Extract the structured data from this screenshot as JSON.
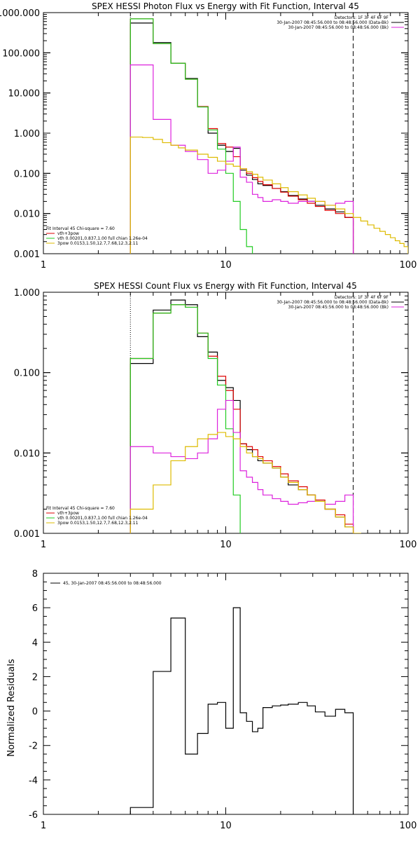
{
  "colors": {
    "black": "#000000",
    "red": "#dd0000",
    "green": "#22cc22",
    "magenta": "#dd22dd",
    "yellow": "#ddbb00"
  },
  "chart_data": [
    {
      "type": "line",
      "title": "SPEX HESSI Photon Flux vs Energy with Fit Function, Interval 45",
      "xlabel": "",
      "ylabel": "",
      "x_scale": "log",
      "y_scale": "log",
      "xlim": [
        1,
        100
      ],
      "ylim": [
        0.001,
        1000
      ],
      "xticks": [
        "1",
        "10",
        "100"
      ],
      "yticks": [
        "1000.000",
        "100.000",
        "10.000",
        "1.000",
        "0.100",
        "0.010",
        "0.001"
      ],
      "vlines": [
        3.0,
        50.0
      ],
      "legend_top": [
        "Detectors: 1F 3F 4F 6F 9F",
        "30-Jan-2007 08:45:56.000 to 08:48:56.000 (Data-Bk)",
        "30-Jan-2007 08:45:56.000 to 08:48:56.000 (Bk)"
      ],
      "legend_bottom": [
        "Fit Interval 45   Chi-square = 7.60",
        "vth+3pow",
        "vth 0.00201,0.837,1.00  full chian 1.26e-04",
        "3pow 0.0153,1.50,12.7,7.68,12.3,2.11"
      ],
      "series": [
        {
          "color": "black",
          "edges": [
            3,
            4,
            5,
            6,
            7,
            8,
            9,
            10,
            11,
            12,
            13,
            14,
            15,
            16,
            18,
            20,
            22,
            25,
            28,
            31,
            35,
            40,
            45,
            50
          ],
          "values": [
            550,
            180,
            55,
            23,
            4.5,
            1.0,
            0.5,
            0.35,
            0.42,
            0.12,
            0.09,
            0.07,
            0.055,
            0.05,
            0.042,
            0.035,
            0.028,
            0.023,
            0.02,
            0.016,
            0.013,
            0.011,
            0.008
          ]
        },
        {
          "color": "red",
          "edges": [
            3,
            4,
            5,
            6,
            7,
            8,
            9,
            10,
            11,
            12,
            13,
            14,
            15,
            16,
            18,
            20,
            22,
            25,
            28,
            31,
            35,
            40,
            45,
            50
          ],
          "values": [
            700,
            170,
            55,
            22,
            4.6,
            1.3,
            0.55,
            0.45,
            0.26,
            0.13,
            0.1,
            0.078,
            0.063,
            0.052,
            0.042,
            0.034,
            0.027,
            0.022,
            0.018,
            0.015,
            0.012,
            0.01,
            0.008
          ]
        },
        {
          "color": "green",
          "edges": [
            3,
            4,
            5,
            6,
            7,
            8,
            9,
            10,
            11,
            12,
            13,
            14
          ],
          "values": [
            700,
            170,
            55,
            22,
            4.5,
            1.2,
            0.4,
            0.1,
            0.02,
            0.004,
            0.0015
          ]
        },
        {
          "color": "magenta",
          "edges": [
            3,
            4,
            5,
            6,
            7,
            8,
            9,
            10,
            11,
            12,
            13,
            14,
            15,
            16,
            18,
            20,
            22,
            25,
            28,
            31,
            35,
            40,
            45,
            50
          ],
          "values": [
            50,
            2.2,
            0.5,
            0.35,
            0.22,
            0.1,
            0.12,
            0.2,
            0.45,
            0.08,
            0.06,
            0.03,
            0.025,
            0.02,
            0.022,
            0.02,
            0.018,
            0.02,
            0.02,
            0.02,
            0.016,
            0.018,
            0.02
          ]
        },
        {
          "color": "yellow",
          "edges": [
            3,
            3.5,
            4,
            4.5,
            5,
            5.5,
            6,
            7,
            8,
            9,
            10,
            11,
            12,
            13,
            14,
            15,
            16,
            18,
            20,
            22,
            25,
            28,
            31,
            35,
            40,
            45,
            50,
            55,
            60,
            65,
            70,
            75,
            80,
            85,
            90,
            95,
            100
          ],
          "values": [
            0.8,
            0.78,
            0.7,
            0.58,
            0.5,
            0.43,
            0.38,
            0.3,
            0.25,
            0.2,
            0.17,
            0.15,
            0.13,
            0.11,
            0.095,
            0.08,
            0.068,
            0.055,
            0.044,
            0.035,
            0.029,
            0.024,
            0.02,
            0.016,
            0.013,
            0.01,
            0.008,
            0.0065,
            0.0052,
            0.0043,
            0.0036,
            0.003,
            0.0025,
            0.0021,
            0.0018,
            0.0015
          ]
        }
      ]
    },
    {
      "type": "line",
      "title": "SPEX HESSI Count Flux vs Energy with Fit Function, Interval 45",
      "xlabel": "",
      "ylabel": "",
      "x_scale": "log",
      "y_scale": "log",
      "xlim": [
        1,
        100
      ],
      "ylim": [
        0.001,
        1
      ],
      "xticks": [
        "1",
        "10",
        "100"
      ],
      "yticks": [
        "1.000",
        "0.100",
        "0.010",
        "0.001"
      ],
      "vlines": [
        3.0,
        50.0
      ],
      "legend_top": [
        "Detectors: 1F 3F 4F 6F 9F",
        "30-Jan-2007 08:45:56.000 to 08:48:56.000 (Data-Bk)",
        "30-Jan-2007 08:45:56.000 to 08:48:56.000 (Bk)"
      ],
      "legend_bottom": [
        "Fit Interval 45   Chi-square = 7.60",
        "vth+3pow",
        "vth 0.00201,0.837,1.00  full chian 1.26e-04",
        "3pow 0.0153,1.50,12.7,7.68,12.3,2.11"
      ],
      "series": [
        {
          "color": "black",
          "edges": [
            3,
            4,
            5,
            6,
            7,
            8,
            9,
            10,
            11,
            12,
            13,
            14,
            15,
            16,
            18,
            20,
            22,
            25,
            28,
            31,
            35,
            40,
            45,
            50
          ],
          "values": [
            0.13,
            0.6,
            0.8,
            0.7,
            0.28,
            0.18,
            0.08,
            0.065,
            0.045,
            0.013,
            0.011,
            0.009,
            0.008,
            0.0075,
            0.0065,
            0.005,
            0.004,
            0.0035,
            0.003,
            0.0025,
            0.002,
            0.0016,
            0.0012
          ]
        },
        {
          "color": "red",
          "edges": [
            3,
            4,
            5,
            6,
            7,
            8,
            9,
            10,
            11,
            12,
            13,
            14,
            15,
            16,
            18,
            20,
            22,
            25,
            28,
            31,
            35,
            40,
            45,
            50
          ],
          "values": [
            0.15,
            0.55,
            0.7,
            0.65,
            0.31,
            0.16,
            0.09,
            0.06,
            0.035,
            0.013,
            0.012,
            0.011,
            0.009,
            0.008,
            0.0068,
            0.0055,
            0.0045,
            0.0038,
            0.003,
            0.0026,
            0.002,
            0.0017,
            0.0013
          ]
        },
        {
          "color": "green",
          "edges": [
            3,
            4,
            5,
            6,
            7,
            8,
            9,
            10,
            11,
            12
          ],
          "values": [
            0.15,
            0.55,
            0.7,
            0.65,
            0.31,
            0.15,
            0.07,
            0.02,
            0.003
          ]
        },
        {
          "color": "magenta",
          "edges": [
            3,
            4,
            5,
            6,
            7,
            8,
            9,
            10,
            11,
            12,
            13,
            14,
            15,
            16,
            18,
            20,
            22,
            25,
            28,
            31,
            35,
            40,
            45,
            50
          ],
          "values": [
            0.012,
            0.01,
            0.009,
            0.0085,
            0.01,
            0.015,
            0.035,
            0.045,
            0.018,
            0.006,
            0.005,
            0.0043,
            0.0035,
            0.003,
            0.0027,
            0.0025,
            0.0023,
            0.0024,
            0.0025,
            0.0025,
            0.0023,
            0.0025,
            0.003
          ]
        },
        {
          "color": "yellow",
          "edges": [
            3,
            4,
            5,
            6,
            7,
            8,
            9,
            10,
            11,
            12,
            13,
            14,
            15,
            16,
            18,
            20,
            22,
            25,
            28,
            31,
            35,
            40,
            45,
            50,
            55
          ],
          "values": [
            0.002,
            0.004,
            0.008,
            0.012,
            0.015,
            0.017,
            0.018,
            0.016,
            0.015,
            0.012,
            0.01,
            0.009,
            0.0085,
            0.0075,
            0.0065,
            0.005,
            0.0043,
            0.0035,
            0.003,
            0.0025,
            0.002,
            0.0016,
            0.0012,
            0.001
          ]
        }
      ]
    },
    {
      "type": "line",
      "title": "",
      "xlabel": "",
      "ylabel": "Normalized Residuals",
      "x_scale": "log",
      "y_scale": "linear",
      "xlim": [
        1,
        100
      ],
      "ylim": [
        -6,
        8
      ],
      "xticks": [
        "1",
        "10",
        "100"
      ],
      "yticks": [
        "8",
        "6",
        "4",
        "2",
        "0",
        "-2",
        "-4",
        "-6"
      ],
      "legend_top_left": "45, 30-Jan-2007 08:45:56.000 to 08:48:56.000",
      "series": [
        {
          "color": "black",
          "edges": [
            3,
            4,
            5,
            6,
            7,
            8,
            9,
            10,
            11,
            12,
            13,
            14,
            15,
            16,
            18,
            20,
            22,
            25,
            28,
            31,
            35,
            40,
            45,
            50
          ],
          "values": [
            -5.6,
            2.3,
            5.4,
            -2.5,
            -1.3,
            0.4,
            0.5,
            -1.0,
            6.0,
            -0.1,
            -0.6,
            -1.2,
            -1.0,
            0.2,
            0.3,
            0.35,
            0.4,
            0.5,
            0.3,
            -0.05,
            -0.3,
            0.1,
            -0.1
          ]
        }
      ]
    }
  ]
}
